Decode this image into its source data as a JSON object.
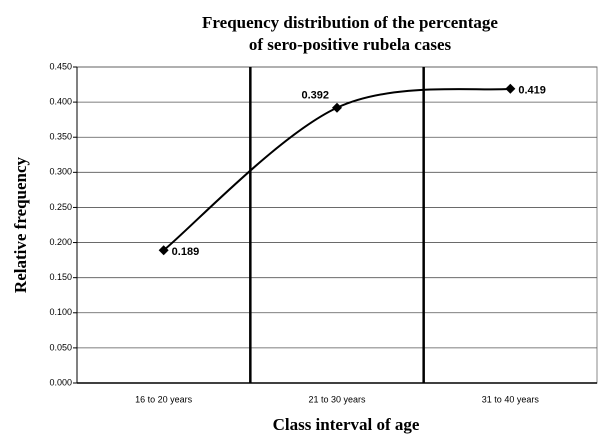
{
  "chart_data": {
    "type": "line",
    "title": [
      "Frequency distribution of the percentage",
      "of sero-positive rubela cases"
    ],
    "x_label": "Class interval of age",
    "y_label": "Relative frequency",
    "categories": [
      "16 to 20 years",
      "21 to 30 years",
      "31 to 40 years"
    ],
    "values": [
      0.189,
      0.392,
      0.419
    ],
    "color": "#000000",
    "ylim": [
      0,
      0.45
    ],
    "yticks": [
      {
        "value": 0,
        "label": "0.000"
      },
      {
        "value": 0.05,
        "label": "0.050"
      },
      {
        "value": 0.1,
        "label": "0.100"
      },
      {
        "value": 0.15,
        "label": "0.150"
      },
      {
        "value": 0.2,
        "label": "0.200"
      },
      {
        "value": 0.25,
        "label": "0.250"
      },
      {
        "value": 0.3,
        "label": "0.300"
      },
      {
        "value": 0.35,
        "label": "0.350"
      },
      {
        "value": 0.4,
        "label": "0.400"
      },
      {
        "value": 0.45,
        "label": "0.450"
      }
    ],
    "grid": true
  }
}
